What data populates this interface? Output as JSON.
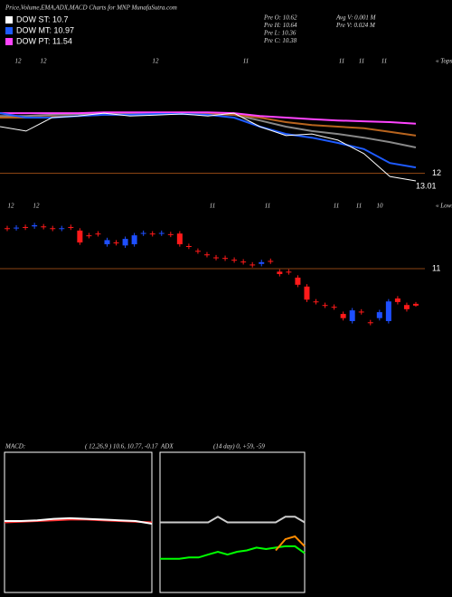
{
  "header": {
    "title": "Price,Volume,EMA,ADX,MACD Charts for MNP MunafaSutra.com",
    "legend": [
      {
        "label": "DOW ST: 10.7",
        "color": "#ffffff"
      },
      {
        "label": "DOW MT: 10.97",
        "color": "#1e5bff"
      },
      {
        "label": "DOW PT: 11.54",
        "color": "#ff44ff"
      }
    ],
    "stats": [
      "Pre   O: 10.62",
      "Pre   H: 10.64",
      "Pre   L: 10.36",
      "Pre   C: 10.38",
      "Avg V: 0.001 M",
      "Pre  V: 0.024  M"
    ]
  },
  "chart_data": [
    {
      "type": "line",
      "x_labels": [
        "12",
        "12",
        "12",
        "11",
        "11",
        "11",
        "11"
      ],
      "tag": "« Tops",
      "ylim": [
        11.7,
        14.8
      ],
      "yticks": [
        12
      ],
      "annotation": "13.01",
      "series": [
        {
          "color": "#888888",
          "values": [
            13.4,
            13.4,
            13.43,
            13.45,
            13.45,
            13.45,
            13.47,
            13.47,
            13.45,
            13.43,
            13.29,
            13.14,
            13.03,
            12.96,
            12.87,
            12.76,
            12.63
          ]
        },
        {
          "color": "#b8641e",
          "values": [
            13.36,
            13.36,
            13.38,
            13.4,
            13.43,
            13.43,
            13.45,
            13.45,
            13.45,
            13.43,
            13.36,
            13.25,
            13.18,
            13.14,
            13.1,
            13.01,
            12.92
          ]
        },
        {
          "color": "#ff44ff",
          "values": [
            13.47,
            13.47,
            13.47,
            13.47,
            13.49,
            13.49,
            13.49,
            13.49,
            13.49,
            13.47,
            13.4,
            13.36,
            13.32,
            13.29,
            13.27,
            13.25,
            13.21
          ]
        },
        {
          "color": "#1e5bff",
          "values": [
            13.47,
            13.36,
            13.36,
            13.4,
            13.43,
            13.43,
            13.45,
            13.45,
            13.43,
            13.36,
            13.14,
            12.96,
            12.87,
            12.74,
            12.59,
            12.25,
            12.14
          ]
        },
        {
          "color": "#ffffff",
          "values": [
            13.14,
            13.03,
            13.36,
            13.4,
            13.47,
            13.4,
            13.42,
            13.45,
            13.4,
            13.47,
            13.14,
            12.92,
            12.96,
            12.81,
            12.48,
            11.92,
            11.81
          ]
        }
      ]
    },
    {
      "type": "candlestick",
      "x_labels": [
        "12",
        "12",
        "11",
        "11",
        "11",
        "11",
        "10"
      ],
      "tag": "« Lows",
      "ylim": [
        9.74,
        12.17
      ],
      "yticks": [
        11
      ],
      "up_color": "#1e4fff",
      "down_color": "#ff1a1a",
      "open": [
        11.68,
        11.68,
        11.7,
        11.71,
        11.71,
        11.68,
        11.67,
        11.7,
        11.64,
        11.56,
        11.59,
        11.41,
        11.44,
        11.39,
        11.41,
        11.59,
        11.59,
        11.59,
        11.58,
        11.59,
        11.38,
        11.3,
        11.24,
        11.19,
        11.18,
        11.15,
        11.12,
        11.07,
        11.08,
        11.13,
        10.95,
        10.95,
        10.85,
        10.7,
        10.45,
        10.39,
        10.36,
        10.24,
        10.12,
        10.28,
        10.1,
        10.17,
        10.12,
        10.5,
        10.39,
        10.41
      ],
      "high": [
        11.72,
        11.73,
        11.74,
        11.77,
        11.75,
        11.72,
        11.72,
        11.74,
        11.68,
        11.6,
        11.63,
        11.52,
        11.48,
        11.54,
        11.6,
        11.64,
        11.63,
        11.64,
        11.62,
        11.63,
        11.42,
        11.34,
        11.28,
        11.23,
        11.22,
        11.19,
        11.16,
        11.11,
        11.15,
        11.17,
        10.99,
        10.99,
        10.89,
        10.74,
        10.49,
        10.43,
        10.4,
        10.28,
        10.34,
        10.32,
        10.14,
        10.31,
        10.49,
        10.54,
        10.43,
        10.44
      ],
      "low": [
        11.63,
        11.64,
        11.65,
        11.67,
        11.66,
        11.63,
        11.63,
        11.65,
        11.4,
        11.51,
        11.54,
        11.37,
        11.39,
        11.35,
        11.37,
        11.55,
        11.54,
        11.55,
        11.53,
        11.37,
        11.33,
        11.25,
        11.19,
        11.14,
        11.13,
        11.1,
        11.07,
        11.02,
        11.04,
        11.08,
        10.87,
        10.9,
        10.69,
        10.44,
        10.4,
        10.34,
        10.31,
        10.13,
        10.08,
        10.23,
        10.05,
        10.13,
        10.08,
        10.4,
        10.28,
        10.36
      ],
      "close": [
        11.67,
        11.69,
        11.69,
        11.73,
        11.7,
        11.67,
        11.68,
        11.69,
        11.44,
        11.55,
        11.58,
        11.48,
        11.43,
        11.5,
        11.56,
        11.6,
        11.58,
        11.6,
        11.57,
        11.41,
        11.37,
        11.29,
        11.23,
        11.18,
        11.17,
        11.14,
        11.11,
        11.06,
        11.11,
        11.12,
        10.91,
        10.94,
        10.73,
        10.48,
        10.44,
        10.38,
        10.35,
        10.17,
        10.3,
        10.27,
        10.09,
        10.27,
        10.45,
        10.44,
        10.32,
        10.38
      ]
    },
    {
      "type": "line",
      "title": "MACD:",
      "subtitle": "( 12,26,9 ) 10.6, 10.77, -0.17",
      "ylim": [
        -1,
        1
      ],
      "series": [
        {
          "color": "#ff3030",
          "values": [
            0.0,
            0.01,
            0.02,
            0.03,
            0.04,
            0.04,
            0.03,
            0.02,
            0.01,
            0.0
          ]
        },
        {
          "color": "#ffffff",
          "values": [
            0.02,
            0.02,
            0.03,
            0.05,
            0.06,
            0.05,
            0.04,
            0.03,
            0.02,
            -0.02
          ]
        }
      ]
    },
    {
      "type": "line",
      "title": "ADX",
      "subtitle": "(14  day) 0, +59, -59",
      "ylim": [
        0,
        100
      ],
      "series": [
        {
          "color": "#cccccc",
          "values": [
            50,
            50,
            50,
            50,
            50,
            50,
            54,
            50,
            50,
            50,
            50,
            50,
            50,
            54,
            54,
            50
          ]
        },
        {
          "color": "#00ff00",
          "values": [
            24,
            24,
            24,
            25,
            25,
            27,
            29,
            27,
            29,
            30,
            32,
            31,
            32,
            33,
            33,
            28
          ]
        },
        {
          "color": "#ff8c00",
          "values": [
            null,
            null,
            null,
            null,
            null,
            null,
            null,
            null,
            null,
            null,
            null,
            null,
            30,
            38,
            40,
            33
          ]
        }
      ]
    }
  ]
}
